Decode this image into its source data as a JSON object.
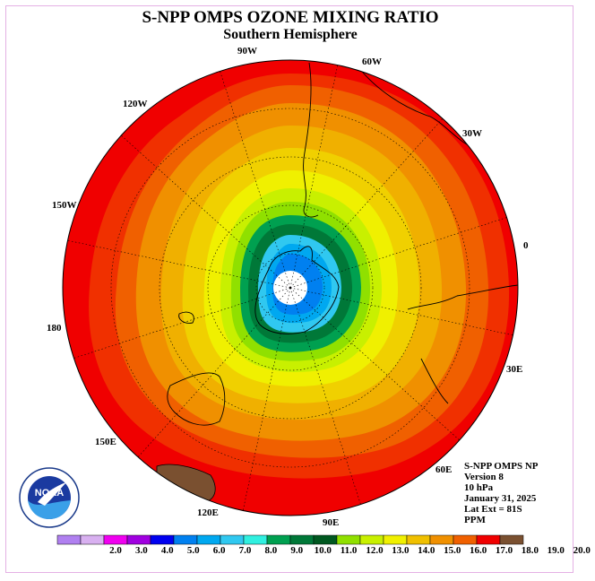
{
  "title": "S-NPP OMPS OZONE MIXING RATIO",
  "subtitle": "Southern Hemisphere",
  "longitude_labels": [
    {
      "name": "lon-90w",
      "text": "90W"
    },
    {
      "name": "lon-60w",
      "text": "60W"
    },
    {
      "name": "lon-30w",
      "text": "30W"
    },
    {
      "name": "lon-0",
      "text": "0"
    },
    {
      "name": "lon-30e",
      "text": "30E"
    },
    {
      "name": "lon-60e",
      "text": "60E"
    },
    {
      "name": "lon-90e",
      "text": "90E"
    },
    {
      "name": "lon-120e",
      "text": "120E"
    },
    {
      "name": "lon-150e",
      "text": "150E"
    },
    {
      "name": "lon-180",
      "text": "180"
    },
    {
      "name": "lon-150w",
      "text": "150W"
    },
    {
      "name": "lon-120w",
      "text": "120W"
    }
  ],
  "info": {
    "instrument": "S-NPP OMPS NP",
    "version": "Version 8",
    "level": "10 hPa",
    "date": "January 31, 2025",
    "lat_ext": "Lat Ext = 81S",
    "units": "PPM"
  },
  "logo": {
    "text": "NOAA",
    "icon": "noaa-logo-icon"
  },
  "colorbar": {
    "ticks": [
      "2.0",
      "3.0",
      "4.0",
      "5.0",
      "6.0",
      "7.0",
      "8.0",
      "9.0",
      "10.0",
      "11.0",
      "12.0",
      "13.0",
      "14.0",
      "15.0",
      "16.0",
      "17.0",
      "18.0",
      "19.0",
      "20.0"
    ],
    "colors": [
      "#b080f0",
      "#d8b0f0",
      "#f000f0",
      "#a000e0",
      "#0000f0",
      "#0080f0",
      "#00a8f0",
      "#30c8f0",
      "#30f0e0",
      "#00a050",
      "#007838",
      "#005820",
      "#90e000",
      "#c8f000",
      "#f0f000",
      "#f0c000",
      "#f09000",
      "#f06000",
      "#f00000",
      "#7a5030"
    ]
  },
  "map": {
    "contour_colors": [
      "#f00000",
      "#f03000",
      "#f06000",
      "#f09000",
      "#f0b000",
      "#f0d000",
      "#f0f000",
      "#c8f000",
      "#90e000",
      "#00a050",
      "#007838",
      "#005820",
      "#30c8f0",
      "#00a8f0",
      "#0080f0",
      "#ffffff"
    ]
  }
}
